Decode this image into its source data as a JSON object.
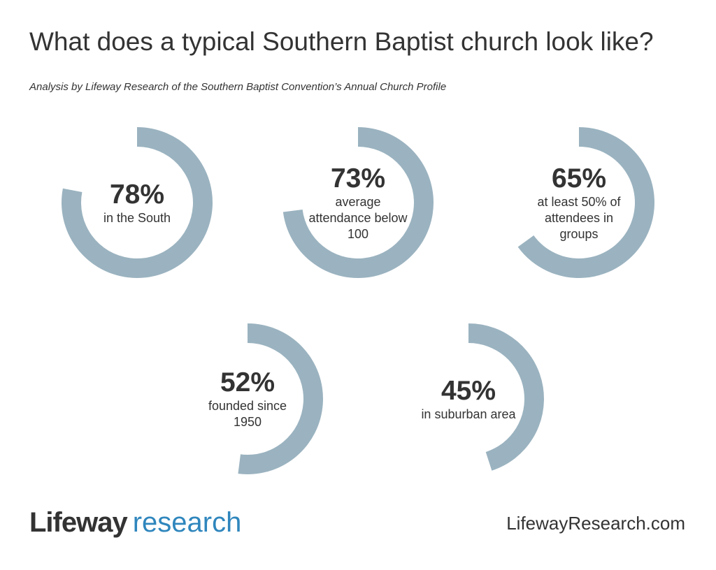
{
  "title": "What does a typical Southern Baptist church look like?",
  "subtitle": "Analysis by Lifeway Research of the Southern Baptist Convention’s Annual Church Profile",
  "colors": {
    "ring": "#9bb3c0",
    "text": "#333333",
    "brand_blue": "#2f86bd"
  },
  "chart_data": {
    "type": "pie",
    "variant": "donut",
    "items": [
      {
        "value": 78,
        "pct_label": "78%",
        "desc": "in the South"
      },
      {
        "value": 73,
        "pct_label": "73%",
        "desc": "average attendance below 100"
      },
      {
        "value": 65,
        "pct_label": "65%",
        "desc": "at least 50% of attendees in groups"
      },
      {
        "value": 52,
        "pct_label": "52%",
        "desc": "founded since 1950"
      },
      {
        "value": 45,
        "pct_label": "45%",
        "desc": "in suburban area"
      }
    ]
  },
  "footer": {
    "logo_brand": "Lifeway",
    "logo_sub": "research",
    "website": "LifewayResearch.com"
  }
}
